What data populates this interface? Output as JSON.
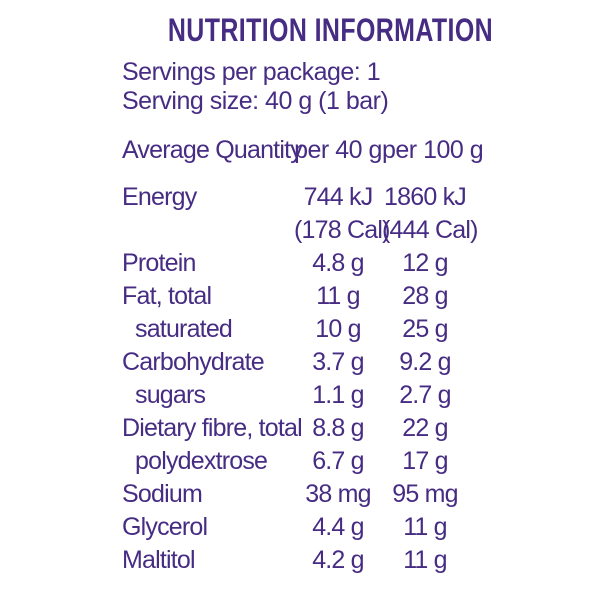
{
  "title": "NUTRITION INFORMATION",
  "serving_info": {
    "servings_per_package": "Servings per package: 1",
    "serving_size": "Serving size: 40 g (1 bar)"
  },
  "table": {
    "columns": {
      "nutrient": "Average Quantity",
      "per_serving": "per 40 g",
      "per_100g": "per 100 g"
    },
    "rows": [
      {
        "label": "Energy",
        "per40": "744 kJ",
        "per100": "1860 kJ",
        "per40_cal": "(178 Cal)",
        "per100_cal": "(444 Cal)",
        "indent": false
      },
      {
        "label": "Protein",
        "per40": "4.8 g",
        "per100": "12 g",
        "indent": false
      },
      {
        "label": "Fat, total",
        "per40": "11 g",
        "per100": "28 g",
        "indent": false
      },
      {
        "label": "saturated",
        "per40": "10 g",
        "per100": "25 g",
        "indent": true
      },
      {
        "label": "Carbohydrate",
        "per40": "3.7 g",
        "per100": "9.2 g",
        "indent": false
      },
      {
        "label": "sugars",
        "per40": "1.1 g",
        "per100": "2.7 g",
        "indent": true
      },
      {
        "label": "Dietary fibre, total",
        "per40": "8.8 g",
        "per100": "22 g",
        "indent": false
      },
      {
        "label": "polydextrose",
        "per40": "6.7 g",
        "per100": "17 g",
        "indent": true
      },
      {
        "label": "Sodium",
        "per40": "38 mg",
        "per100": "95 mg",
        "indent": false
      },
      {
        "label": "Glycerol",
        "per40": "4.4 g",
        "per100": "11 g",
        "indent": false
      },
      {
        "label": "Maltitol",
        "per40": "4.2 g",
        "per100": "11 g",
        "indent": false
      }
    ]
  },
  "colors": {
    "text": "#462c83",
    "background": "#ffffff"
  }
}
